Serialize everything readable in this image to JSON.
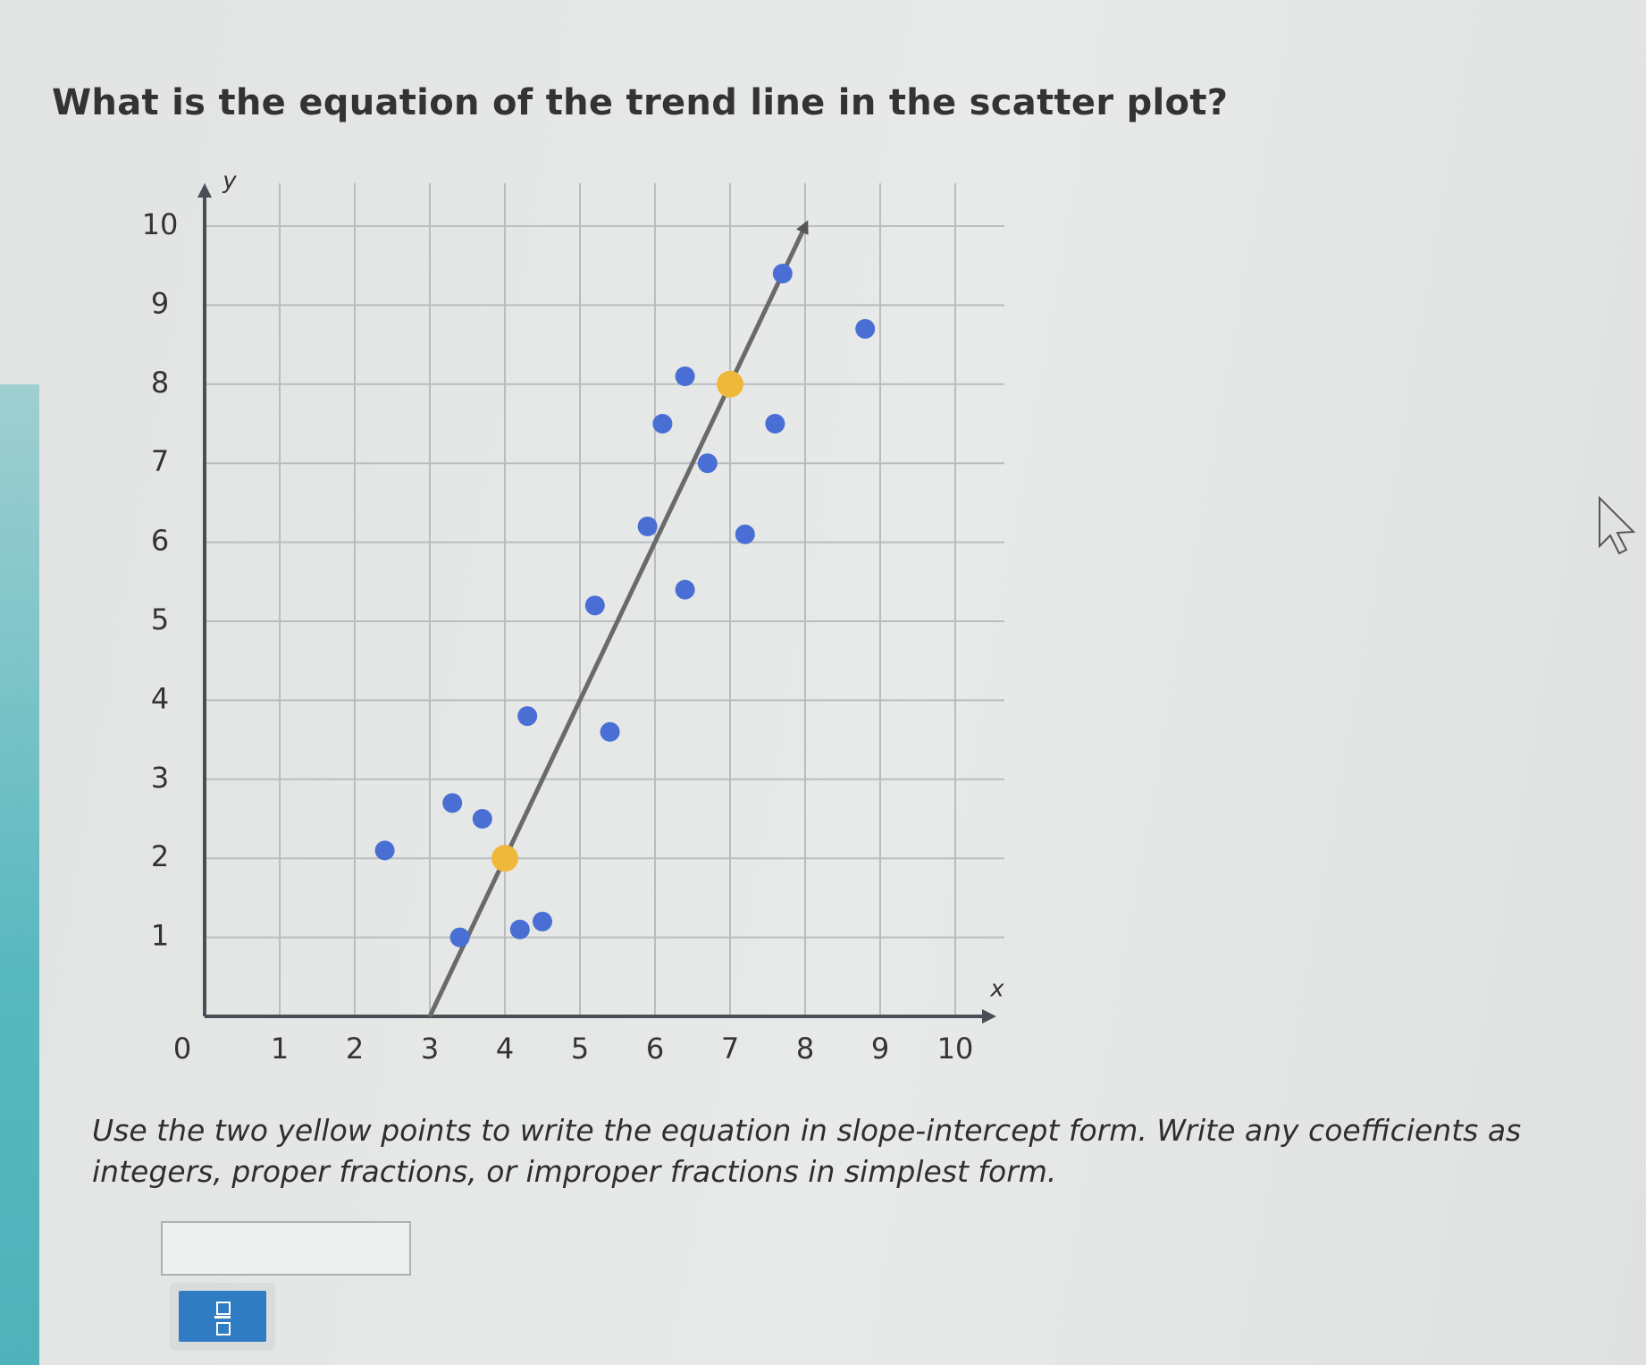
{
  "question": "What is the equation of the trend line in the scatter plot?",
  "chart_data": {
    "type": "scatter",
    "xlabel": "x",
    "ylabel": "y",
    "xlim": [
      0,
      10
    ],
    "ylim": [
      0,
      10
    ],
    "xticks": [
      0,
      1,
      2,
      3,
      4,
      5,
      6,
      7,
      8,
      9,
      10
    ],
    "yticks": [
      1,
      2,
      3,
      4,
      5,
      6,
      7,
      8,
      9,
      10
    ],
    "grid": true,
    "series": [
      {
        "color": "#4a6fd4",
        "x": [
          2.4,
          3.3,
          3.7,
          3.4,
          4.2,
          4.5,
          4.3,
          5.4,
          5.2,
          6.4,
          5.9,
          7.2,
          6.7,
          6.1,
          7.6,
          6.4,
          7.7,
          8.8
        ],
        "y": [
          2.1,
          2.7,
          2.5,
          1.0,
          1.1,
          1.2,
          3.8,
          3.6,
          5.2,
          5.4,
          6.2,
          6.1,
          7.0,
          7.5,
          7.5,
          8.1,
          9.4,
          8.7
        ]
      },
      {
        "color": "#f0b83a",
        "x": [
          4,
          7
        ],
        "y": [
          2,
          8
        ]
      },
      {
        "type": "line",
        "color": "#6a6a6a",
        "x": [
          3,
          8
        ],
        "y": [
          0,
          10
        ]
      }
    ]
  },
  "instructions": "Use the two yellow points to write the equation in slope-intercept form. Write any coefficients as integers, proper fractions, or improper fractions in simplest form."
}
